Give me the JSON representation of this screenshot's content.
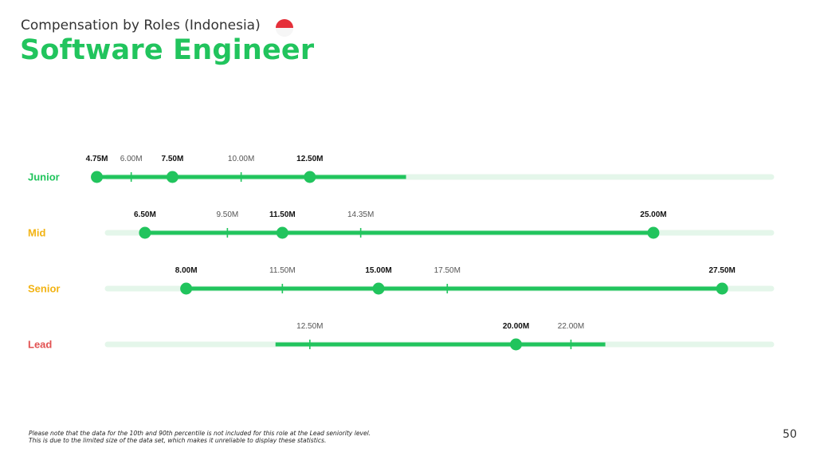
{
  "header": {
    "subtitle": "Compensation by Roles (Indonesia)",
    "title": "Software Engineer",
    "flag_icon": "indonesia-flag-icon"
  },
  "footnote": {
    "line1": "Please note that the data for the 10th and 90th percentile is not included for this role at the Lead seniority level.",
    "line2": "This is due to the limited size of the data set, which makes it unreliable to display these statistics."
  },
  "page_number": "50",
  "colors": {
    "accent": "#21c45d",
    "track": "#e4f6ea",
    "junior": "#21c45d",
    "mid": "#f2b313",
    "senior": "#f2b313",
    "lead": "#e25252"
  },
  "chart_data": {
    "type": "range",
    "x_domain": [
      2.0,
      30.0
    ],
    "rows": [
      {
        "role": "Junior",
        "color": "#21c45d",
        "range": [
          4.75,
          16.0
        ],
        "dots": [
          4.75,
          7.5,
          12.5
        ],
        "ticks": [
          6.0,
          10.0
        ],
        "labels": [
          {
            "value": 4.75,
            "text": "4.75M",
            "bold": true
          },
          {
            "value": 6.0,
            "text": "6.00M",
            "bold": false
          },
          {
            "value": 7.5,
            "text": "7.50M",
            "bold": true
          },
          {
            "value": 10.0,
            "text": "10.00M",
            "bold": false
          },
          {
            "value": 12.5,
            "text": "12.50M",
            "bold": true
          }
        ]
      },
      {
        "role": "Mid",
        "color": "#f2b313",
        "range": [
          6.5,
          25.0
        ],
        "dots": [
          6.5,
          11.5,
          25.0
        ],
        "ticks": [
          9.5,
          14.35
        ],
        "labels": [
          {
            "value": 6.5,
            "text": "6.50M",
            "bold": true
          },
          {
            "value": 9.5,
            "text": "9.50M",
            "bold": false
          },
          {
            "value": 11.5,
            "text": "11.50M",
            "bold": true
          },
          {
            "value": 14.35,
            "text": "14.35M",
            "bold": false
          },
          {
            "value": 25.0,
            "text": "25.00M",
            "bold": true
          }
        ]
      },
      {
        "role": "Senior",
        "color": "#f2b313",
        "range": [
          8.0,
          27.5
        ],
        "dots": [
          8.0,
          15.0,
          27.5
        ],
        "ticks": [
          11.5,
          17.5
        ],
        "labels": [
          {
            "value": 8.0,
            "text": "8.00M",
            "bold": true
          },
          {
            "value": 11.5,
            "text": "11.50M",
            "bold": false
          },
          {
            "value": 15.0,
            "text": "15.00M",
            "bold": true
          },
          {
            "value": 17.5,
            "text": "17.50M",
            "bold": false
          },
          {
            "value": 27.5,
            "text": "27.50M",
            "bold": true
          }
        ]
      },
      {
        "role": "Lead",
        "color": "#e25252",
        "range": [
          11.25,
          23.25
        ],
        "dots": [
          20.0
        ],
        "ticks": [
          12.5,
          22.0
        ],
        "labels": [
          {
            "value": 12.5,
            "text": "12.50M",
            "bold": false
          },
          {
            "value": 20.0,
            "text": "20.00M",
            "bold": true
          },
          {
            "value": 22.0,
            "text": "22.00M",
            "bold": false
          }
        ]
      }
    ]
  }
}
